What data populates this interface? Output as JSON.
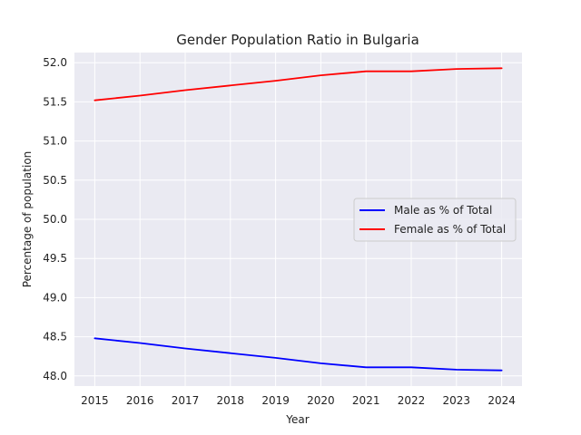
{
  "chart_data": {
    "type": "line",
    "title": "Gender Population Ratio in Bulgaria",
    "xlabel": "Year",
    "ylabel": "Percentage of population",
    "x": [
      2015,
      2016,
      2017,
      2018,
      2019,
      2020,
      2021,
      2022,
      2023,
      2024
    ],
    "x_ticks": [
      "2015",
      "2016",
      "2017",
      "2018",
      "2019",
      "2020",
      "2021",
      "2022",
      "2023",
      "2024"
    ],
    "y_ticks": [
      "48.0",
      "48.5",
      "49.0",
      "49.5",
      "50.0",
      "50.5",
      "51.0",
      "51.5",
      "52.0"
    ],
    "ylim": [
      47.87,
      52.13
    ],
    "grid": true,
    "legend_position": "center-right",
    "series": [
      {
        "name": "Male as % of Total",
        "color": "#0000ff",
        "values": [
          48.48,
          48.42,
          48.35,
          48.29,
          48.23,
          48.16,
          48.11,
          48.11,
          48.08,
          48.07
        ]
      },
      {
        "name": "Female as % of Total",
        "color": "#ff0000",
        "values": [
          51.52,
          51.58,
          51.65,
          51.71,
          51.77,
          51.84,
          51.89,
          51.89,
          51.92,
          51.93
        ]
      }
    ]
  }
}
